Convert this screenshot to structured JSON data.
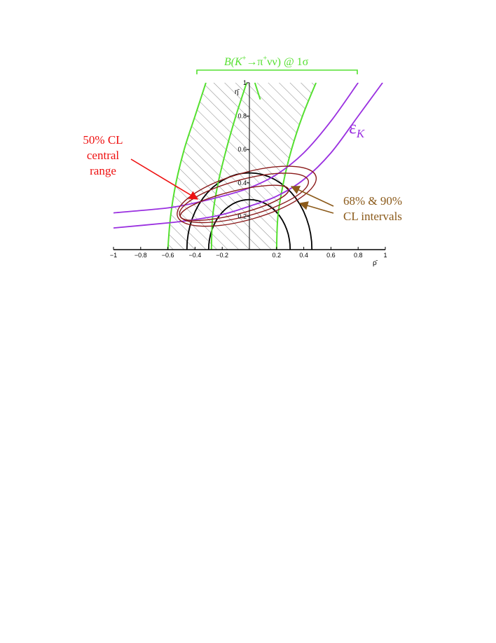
{
  "chart_data": {
    "type": "line",
    "xlabel": "ρ̄",
    "ylabel": "η̄",
    "xlim": [
      -1,
      1
    ],
    "ylim": [
      0,
      1
    ],
    "x_ticks": [
      -1,
      -0.8,
      -0.6,
      -0.4,
      -0.2,
      0.2,
      0.4,
      0.6,
      0.8,
      1
    ],
    "x_tick_labels": [
      "−1",
      "−0.8",
      "−0.6",
      "−0.4",
      "−0.2",
      "0.2",
      "0.4",
      "0.6",
      "0.8",
      "1"
    ],
    "y_ticks": [
      0.2,
      0.4,
      0.6,
      0.8,
      1
    ],
    "y_tick_labels": [
      "0.2",
      "0.4",
      "0.6",
      "0.8",
      "1"
    ],
    "grid": false,
    "colors": {
      "bkpinn": "#55e030",
      "epsk": "#9a30e0",
      "red": "#ee1010",
      "brown": "#8b5a1a",
      "contour": "#8b1c1c",
      "circle": "#000000",
      "hatch": "#555555"
    },
    "annotations": {
      "bkpinn_label_b": "B(K",
      "bkpinn_label_plus1": "+",
      "bkpinn_label_mid": "→π",
      "bkpinn_label_plus2": "+",
      "bkpinn_label_end": "νν)  @ 1σ",
      "epsk_symbol": "ε",
      "epsk_sub": "K",
      "cl50_line1": "50% CL",
      "cl50_line2": "central",
      "cl50_line3": "range",
      "cl6890_line1": "68% & 90%",
      "cl6890_line2": "CL intervals"
    },
    "series": [
      {
        "kind": "bkpinn-green",
        "curves": [
          [
            [
              -0.6,
              0
            ],
            [
              -0.58,
              0.2
            ],
            [
              -0.54,
              0.4
            ],
            [
              -0.48,
              0.6
            ],
            [
              -0.4,
              0.8
            ],
            [
              -0.32,
              1.0
            ]
          ],
          [
            [
              -0.28,
              0
            ],
            [
              -0.27,
              0.2
            ],
            [
              -0.23,
              0.4
            ],
            [
              -0.17,
              0.6
            ],
            [
              -0.1,
              0.8
            ],
            [
              -0.02,
              1.0
            ]
          ],
          [
            [
              0.2,
              0
            ],
            [
              0.21,
              0.2
            ],
            [
              0.25,
              0.4
            ],
            [
              0.31,
              0.6
            ],
            [
              0.39,
              0.8
            ],
            [
              0.49,
              1.0
            ]
          ],
          [
            [
              0.04,
              1.0
            ],
            [
              0.08,
              0.9
            ]
          ]
        ]
      },
      {
        "kind": "epsk-hyperbola",
        "curves": [
          [
            [
              -1,
              0.22
            ],
            [
              -0.6,
              0.25
            ],
            [
              -0.4,
              0.28
            ],
            [
              -0.2,
              0.32
            ],
            [
              0,
              0.37
            ],
            [
              0.2,
              0.45
            ],
            [
              0.4,
              0.58
            ],
            [
              0.6,
              0.77
            ],
            [
              0.8,
              1.0
            ]
          ],
          [
            [
              -1,
              0.13
            ],
            [
              -0.6,
              0.16
            ],
            [
              -0.4,
              0.18
            ],
            [
              -0.2,
              0.21
            ],
            [
              0,
              0.26
            ],
            [
              0.2,
              0.32
            ],
            [
              0.4,
              0.42
            ],
            [
              0.6,
              0.58
            ],
            [
              0.8,
              0.8
            ],
            [
              0.98,
              1.0
            ]
          ]
        ]
      },
      {
        "kind": "rub-circle",
        "center": [
          0,
          0
        ],
        "radii": [
          0.3,
          0.46
        ]
      },
      {
        "kind": "cl-contours",
        "ellipses": [
          {
            "cx": -0.11,
            "cy": 0.28,
            "rx": 0.41,
            "ry": 0.07,
            "angle": 14
          },
          {
            "cx": -0.04,
            "cy": 0.31,
            "rx": 0.49,
            "ry": 0.11,
            "angle": 15
          },
          {
            "cx": -0.02,
            "cy": 0.32,
            "rx": 0.53,
            "ry": 0.14,
            "angle": 16
          }
        ]
      }
    ],
    "hatched_band_x": [
      -0.6,
      0.2
    ]
  }
}
